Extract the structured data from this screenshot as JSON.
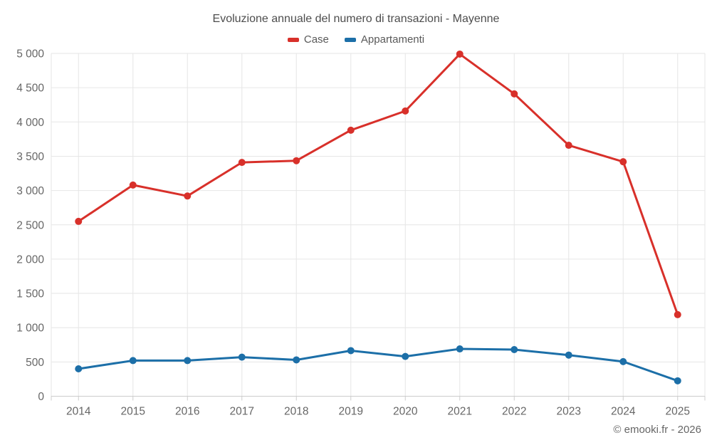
{
  "title": "Evoluzione annuale del numero di transazioni - Mayenne",
  "footer": "© emooki.fr - 2026",
  "legend": [
    {
      "label": "Case",
      "color": "#d8302a"
    },
    {
      "label": "Appartamenti",
      "color": "#1c6fa8"
    }
  ],
  "chart_data": {
    "type": "line",
    "title": "Evoluzione annuale del numero di transazioni - Mayenne",
    "categories": [
      "2014",
      "2015",
      "2016",
      "2017",
      "2018",
      "2019",
      "2020",
      "2021",
      "2022",
      "2023",
      "2024",
      "2025"
    ],
    "series": [
      {
        "name": "Case",
        "color": "#d8302a",
        "values": [
          2550,
          3080,
          2920,
          3410,
          3435,
          3880,
          4160,
          4990,
          4410,
          3660,
          3420,
          1190
        ]
      },
      {
        "name": "Appartamenti",
        "color": "#1c6fa8",
        "values": [
          400,
          520,
          520,
          570,
          530,
          665,
          580,
          690,
          680,
          600,
          505,
          225
        ]
      }
    ],
    "xlabel": "",
    "ylabel": "",
    "ylim": [
      0,
      5000
    ],
    "y_tick_step": 500,
    "y_tick_labels": [
      "0",
      "500",
      "1 000",
      "1 500",
      "2 000",
      "2 500",
      "3 000",
      "3 500",
      "4 000",
      "4 500",
      "5 000"
    ],
    "grid": true,
    "legend_position": "top"
  },
  "colors": {
    "grid": "#e6e6e6",
    "axis_line": "#cccccc",
    "tick": "#cccccc",
    "axis_label": "#666666",
    "title": "#4d4d4d",
    "legend_text": "#595959",
    "background": "#ffffff"
  }
}
